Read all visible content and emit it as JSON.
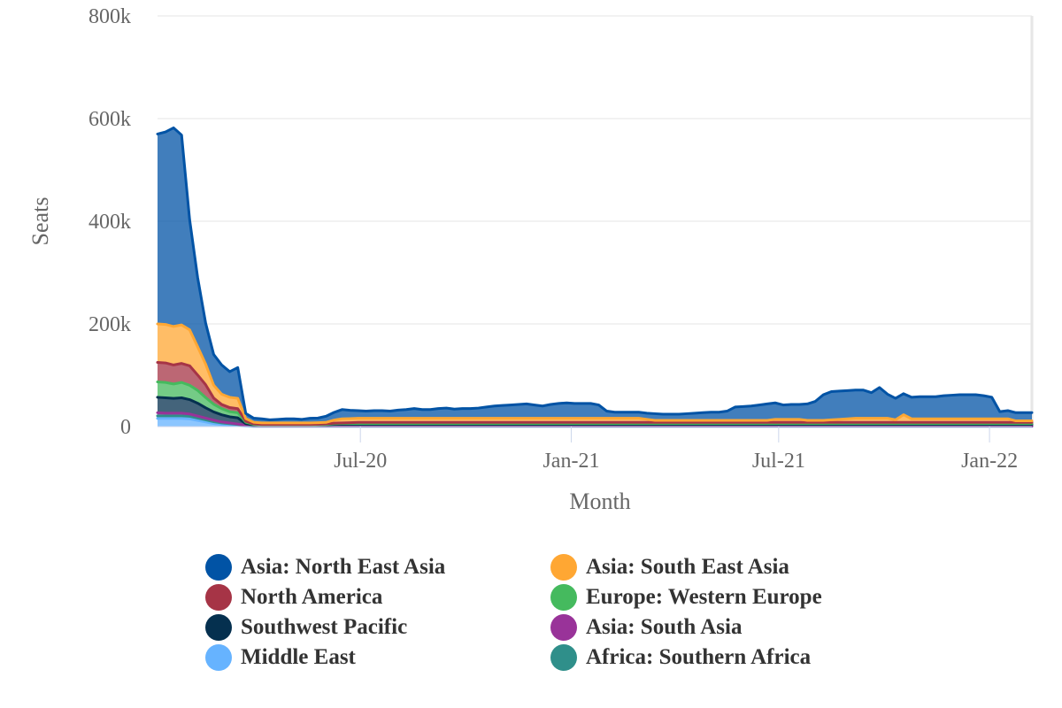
{
  "chart_data": {
    "type": "area",
    "stacked": true,
    "title": "",
    "xlabel": "Month",
    "ylabel": "Seats",
    "ylim": [
      0,
      800000
    ],
    "y_ticks": [
      {
        "value": 0,
        "label": "0"
      },
      {
        "value": 200000,
        "label": "200k"
      },
      {
        "value": 400000,
        "label": "400k"
      },
      {
        "value": 600000,
        "label": "600k"
      },
      {
        "value": 800000,
        "label": "800k"
      }
    ],
    "x_range": [
      "2020-01-06",
      "2022-02-07"
    ],
    "x_ticks": [
      {
        "date": "2020-07-01",
        "label": "Jul-20"
      },
      {
        "date": "2021-01-01",
        "label": "Jan-21"
      },
      {
        "date": "2021-07-01",
        "label": "Jul-21"
      },
      {
        "date": "2022-01-01",
        "label": "Jan-22"
      }
    ],
    "grid": true,
    "legend_position": "bottom",
    "x": [
      "2020-01-06",
      "2020-01-13",
      "2020-01-20",
      "2020-01-27",
      "2020-02-03",
      "2020-02-10",
      "2020-02-17",
      "2020-02-24",
      "2020-03-02",
      "2020-03-09",
      "2020-03-16",
      "2020-03-23",
      "2020-03-30",
      "2020-04-06",
      "2020-04-13",
      "2020-04-20",
      "2020-04-27",
      "2020-05-04",
      "2020-05-11",
      "2020-05-18",
      "2020-05-25",
      "2020-06-01",
      "2020-06-08",
      "2020-06-15",
      "2020-06-22",
      "2020-06-29",
      "2020-07-06",
      "2020-07-13",
      "2020-07-20",
      "2020-07-27",
      "2020-08-03",
      "2020-08-10",
      "2020-08-17",
      "2020-08-24",
      "2020-08-31",
      "2020-09-07",
      "2020-09-14",
      "2020-09-21",
      "2020-09-28",
      "2020-10-05",
      "2020-10-12",
      "2020-10-19",
      "2020-10-26",
      "2020-11-02",
      "2020-11-09",
      "2020-11-16",
      "2020-11-23",
      "2020-11-30",
      "2020-12-07",
      "2020-12-14",
      "2020-12-21",
      "2020-12-28",
      "2021-01-04",
      "2021-01-11",
      "2021-01-18",
      "2021-01-25",
      "2021-02-01",
      "2021-02-08",
      "2021-02-15",
      "2021-02-22",
      "2021-03-01",
      "2021-03-08",
      "2021-03-15",
      "2021-03-22",
      "2021-03-29",
      "2021-04-05",
      "2021-04-12",
      "2021-04-19",
      "2021-04-26",
      "2021-05-03",
      "2021-05-10",
      "2021-05-17",
      "2021-05-24",
      "2021-05-31",
      "2021-06-07",
      "2021-06-14",
      "2021-06-21",
      "2021-06-28",
      "2021-07-05",
      "2021-07-12",
      "2021-07-19",
      "2021-07-26",
      "2021-08-02",
      "2021-08-09",
      "2021-08-16",
      "2021-08-23",
      "2021-08-30",
      "2021-09-06",
      "2021-09-13",
      "2021-09-20",
      "2021-09-27",
      "2021-10-04",
      "2021-10-11",
      "2021-10-18",
      "2021-10-25",
      "2021-11-01",
      "2021-11-08",
      "2021-11-15",
      "2021-11-22",
      "2021-11-29",
      "2021-12-06",
      "2021-12-13",
      "2021-12-20",
      "2021-12-27",
      "2022-01-03",
      "2022-01-10",
      "2022-01-17",
      "2022-01-24",
      "2022-01-31",
      "2022-02-07"
    ],
    "series": [
      {
        "name": "Middle East",
        "color": "#66B3FF",
        "values": [
          16000,
          16000,
          16000,
          16000,
          15000,
          12000,
          9000,
          6000,
          4000,
          3000,
          2000,
          1000,
          500,
          500,
          500,
          500,
          500,
          500,
          500,
          500,
          500,
          500,
          500,
          500,
          500,
          500,
          500,
          500,
          500,
          500,
          500,
          500,
          500,
          500,
          500,
          500,
          500,
          500,
          500,
          500,
          500,
          500,
          500,
          500,
          500,
          500,
          500,
          500,
          500,
          500,
          500,
          500,
          500,
          500,
          500,
          500,
          500,
          500,
          500,
          500,
          500,
          500,
          500,
          500,
          500,
          500,
          500,
          500,
          500,
          500,
          500,
          500,
          500,
          500,
          500,
          500,
          500,
          500,
          500,
          500,
          500,
          500,
          500,
          500,
          500,
          500,
          500,
          500,
          500,
          500,
          500,
          500,
          500,
          500,
          500,
          500,
          500,
          500,
          500,
          500,
          500,
          500,
          500,
          500,
          500,
          500,
          500,
          500,
          500,
          500
        ]
      },
      {
        "name": "Africa: Southern Africa",
        "color": "#2F8F8A",
        "values": [
          5000,
          5000,
          5000,
          5000,
          5000,
          4500,
          4000,
          3500,
          3000,
          2500,
          2000,
          1000,
          500,
          300,
          300,
          300,
          300,
          300,
          300,
          300,
          300,
          300,
          300,
          300,
          300,
          300,
          300,
          300,
          300,
          300,
          300,
          300,
          300,
          300,
          300,
          300,
          300,
          300,
          300,
          300,
          300,
          300,
          300,
          300,
          300,
          300,
          300,
          300,
          300,
          300,
          300,
          300,
          300,
          300,
          300,
          300,
          300,
          300,
          300,
          300,
          300,
          300,
          300,
          300,
          300,
          300,
          300,
          300,
          300,
          300,
          300,
          300,
          300,
          300,
          300,
          300,
          300,
          300,
          300,
          300,
          300,
          300,
          300,
          300,
          300,
          300,
          300,
          300,
          300,
          300,
          300,
          300,
          300,
          300,
          300,
          300,
          300,
          300,
          300,
          300,
          300,
          300,
          300,
          300,
          300,
          300,
          300,
          300,
          300,
          300
        ]
      },
      {
        "name": "Asia: South Asia",
        "color": "#993399",
        "values": [
          6000,
          5000,
          5000,
          5000,
          4500,
          4000,
          3500,
          3000,
          2000,
          1500,
          1000,
          500,
          300,
          300,
          300,
          300,
          300,
          300,
          300,
          300,
          300,
          300,
          300,
          300,
          300,
          300,
          300,
          300,
          300,
          300,
          300,
          300,
          300,
          300,
          300,
          300,
          300,
          300,
          300,
          300,
          300,
          300,
          300,
          300,
          300,
          300,
          300,
          300,
          300,
          300,
          300,
          300,
          300,
          300,
          300,
          300,
          300,
          300,
          300,
          300,
          300,
          300,
          300,
          300,
          300,
          300,
          300,
          300,
          300,
          300,
          300,
          300,
          300,
          300,
          300,
          300,
          300,
          300,
          300,
          300,
          300,
          300,
          300,
          300,
          300,
          300,
          300,
          300,
          300,
          300,
          300,
          300,
          300,
          300,
          300,
          300,
          300,
          300,
          300,
          300,
          300,
          300,
          300,
          300,
          300,
          300,
          300,
          300,
          300,
          300
        ]
      },
      {
        "name": "Southwest Pacific",
        "color": "#05304F",
        "values": [
          30000,
          30000,
          29000,
          30000,
          28000,
          25000,
          20000,
          16000,
          14000,
          12000,
          12000,
          3000,
          1500,
          1000,
          1000,
          1000,
          1000,
          1000,
          1000,
          1000,
          1500,
          2000,
          3000,
          3000,
          3000,
          3000,
          3000,
          3000,
          3000,
          3000,
          3000,
          3000,
          3000,
          3000,
          3000,
          3000,
          3000,
          3000,
          3000,
          3000,
          3000,
          3000,
          3000,
          3000,
          3000,
          3000,
          3000,
          3000,
          3000,
          3000,
          3000,
          3000,
          3000,
          3000,
          3000,
          3000,
          3000,
          3000,
          3000,
          3000,
          3000,
          3000,
          3000,
          3000,
          3000,
          3000,
          3000,
          3000,
          3000,
          3000,
          3000,
          3000,
          3000,
          3000,
          3000,
          3000,
          3000,
          3000,
          3000,
          3000,
          3000,
          3000,
          3000,
          3000,
          3000,
          3000,
          3000,
          3000,
          3000,
          3000,
          3000,
          3000,
          3000,
          3000,
          3000,
          3000,
          3000,
          3000,
          3000,
          3000,
          3000,
          3000,
          3000,
          3000,
          3000,
          3000,
          3000,
          3000,
          3000,
          3000
        ]
      },
      {
        "name": "Europe: Western Europe",
        "color": "#45BA5E",
        "values": [
          30000,
          30000,
          28000,
          30000,
          28000,
          25000,
          20000,
          15000,
          12000,
          10000,
          10000,
          3000,
          1500,
          1000,
          1000,
          1000,
          1000,
          1000,
          1000,
          1000,
          1000,
          1000,
          1500,
          2000,
          2000,
          2000,
          2000,
          2000,
          2000,
          2000,
          2000,
          2000,
          2000,
          2000,
          2000,
          2000,
          2000,
          2000,
          2000,
          2000,
          2000,
          2000,
          2000,
          2000,
          2000,
          2000,
          2000,
          2000,
          2000,
          2000,
          2000,
          2000,
          2000,
          2000,
          2000,
          2000,
          2000,
          2000,
          2000,
          2000,
          2000,
          2000,
          2000,
          2000,
          2000,
          2000,
          2000,
          2000,
          2000,
          2000,
          2000,
          2000,
          2000,
          2000,
          2000,
          2000,
          2000,
          2000,
          2000,
          2000,
          2000,
          2000,
          2000,
          2000,
          2000,
          2000,
          2000,
          2000,
          2000,
          2000,
          2000,
          2000,
          2000,
          2000,
          2000,
          2000,
          2000,
          2000,
          2000,
          2000,
          2000,
          2000,
          2000,
          2000,
          2000,
          2000,
          2000,
          2000,
          2000,
          2000
        ]
      },
      {
        "name": "North America",
        "color": "#A63446",
        "values": [
          38000,
          38000,
          37000,
          37000,
          38000,
          30000,
          25000,
          12000,
          8000,
          8000,
          8000,
          2000,
          1000,
          1000,
          1000,
          1000,
          1000,
          1000,
          1000,
          1000,
          1000,
          1000,
          1000,
          1000,
          1500,
          2000,
          2000,
          2000,
          2000,
          2000,
          2000,
          2000,
          2000,
          2000,
          2000,
          2000,
          2000,
          2000,
          2000,
          2000,
          2000,
          2000,
          2000,
          2000,
          2000,
          2000,
          2000,
          2000,
          2000,
          2000,
          2000,
          2000,
          2000,
          2000,
          2000,
          2000,
          2000,
          2000,
          2000,
          2000,
          2000,
          2000,
          2000,
          2000,
          2000,
          2000,
          2000,
          2000,
          2000,
          2000,
          2000,
          2000,
          2000,
          2000,
          2000,
          2000,
          2000,
          2000,
          2000,
          2000,
          2000,
          2000,
          2000,
          2000,
          2000,
          2000,
          2000,
          2000,
          2000,
          2000,
          2000,
          2000,
          2000,
          2000,
          2000,
          2000,
          2000,
          2000,
          2000,
          2000,
          2000,
          2000,
          2000,
          2000,
          2000,
          2000,
          2000,
          2000,
          2000,
          2000
        ]
      },
      {
        "name": "Asia: South East Asia",
        "color": "#FFA733",
        "values": [
          75000,
          75000,
          75000,
          75000,
          70000,
          55000,
          40000,
          25000,
          20000,
          20000,
          20000,
          5000,
          3000,
          3000,
          3000,
          3000,
          3000,
          3000,
          3000,
          3000,
          3000,
          3000,
          6000,
          8000,
          8000,
          8000,
          8000,
          8000,
          8000,
          8000,
          8000,
          8000,
          8000,
          8000,
          8000,
          8000,
          8000,
          8000,
          8000,
          8000,
          8000,
          8000,
          8000,
          8000,
          8000,
          8000,
          8000,
          8000,
          8000,
          8000,
          8000,
          8000,
          8000,
          8000,
          8000,
          8000,
          8000,
          8000,
          8000,
          8000,
          8000,
          6000,
          4000,
          4000,
          4000,
          4000,
          4000,
          4000,
          4000,
          4000,
          4000,
          4000,
          4000,
          4000,
          4000,
          4000,
          4000,
          6000,
          6000,
          6000,
          6000,
          4000,
          4000,
          4000,
          5000,
          6000,
          7000,
          8000,
          8000,
          8000,
          8000,
          8000,
          5000,
          15000,
          7000,
          7000,
          7000,
          7000,
          7000,
          7000,
          7000,
          7000,
          7000,
          7000,
          7000,
          7000,
          7000,
          3000,
          3000,
          3000
        ]
      },
      {
        "name": "Asia: North East Asia",
        "color": "#0153A5",
        "values": [
          370000,
          375000,
          387000,
          370000,
          215000,
          135000,
          80000,
          60000,
          57000,
          50000,
          60000,
          10000,
          8000,
          8000,
          6000,
          7000,
          8000,
          8000,
          7000,
          9000,
          9000,
          12000,
          15000,
          18000,
          16000,
          15000,
          14000,
          15000,
          15000,
          14000,
          16000,
          17000,
          19000,
          17000,
          17000,
          19000,
          20000,
          18000,
          19000,
          19000,
          20000,
          22000,
          24000,
          25000,
          26000,
          27000,
          28000,
          26000,
          24000,
          27000,
          29000,
          30000,
          29000,
          29000,
          29000,
          26000,
          14000,
          12000,
          12000,
          12000,
          12000,
          12000,
          13000,
          12000,
          12000,
          12000,
          13000,
          14000,
          15000,
          16000,
          16000,
          18000,
          26000,
          27000,
          28000,
          30000,
          32000,
          32000,
          28000,
          29000,
          29000,
          32000,
          37000,
          50000,
          55000,
          55000,
          55000,
          55000,
          55000,
          50000,
          60000,
          47000,
          42000,
          41000,
          42000,
          43000,
          43000,
          43000,
          45000,
          46000,
          47000,
          47000,
          47000,
          45000,
          42000,
          14000,
          16000,
          16000,
          16000,
          16000
        ]
      }
    ]
  }
}
